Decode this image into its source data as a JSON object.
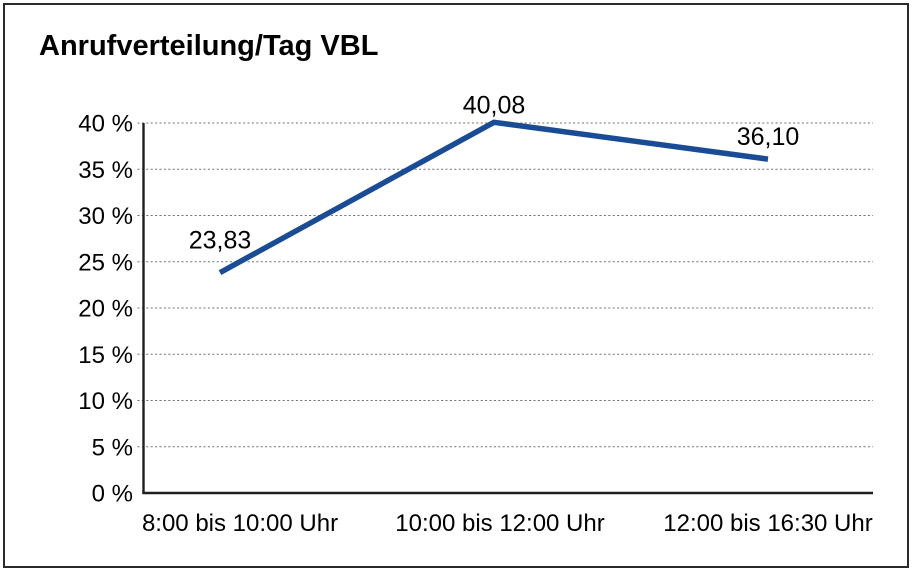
{
  "colors": {
    "background": "#ffffff",
    "frame_border": "#2b2b2b",
    "axis": "#1f1f1f",
    "gridline": "#707070",
    "text": "#000000",
    "series_line": "#1a4c96"
  },
  "chart_data": {
    "type": "line",
    "title": "Anrufverteilung/Tag VBL",
    "categories": [
      "8:00 bis 10:00 Uhr",
      "10:00 bis 12:00 Uhr",
      "12:00 bis 16:30 Uhr"
    ],
    "values": [
      23.83,
      40.08,
      36.1
    ],
    "point_labels": [
      "23,83",
      "40,08",
      "36,10"
    ],
    "xlabel": "",
    "ylabel": "",
    "ylim": [
      0,
      40
    ],
    "ytick_step": 5,
    "ytick_labels": [
      "0 %",
      "5 %",
      "10 %",
      "15 %",
      "20 %",
      "25 %",
      "30 %",
      "35 %",
      "40 %"
    ],
    "grid": "horizontal dotted",
    "legend": "none"
  }
}
